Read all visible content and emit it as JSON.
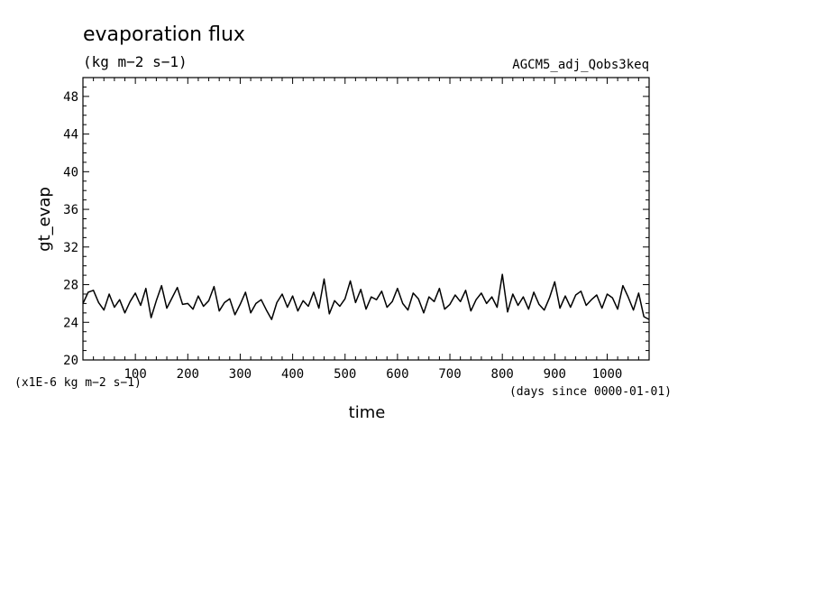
{
  "chart_data": {
    "type": "line",
    "title": "evaporation flux",
    "units": "(kg m−2 s−1)",
    "run_name": "AGCM5_adj_Qobs3keq",
    "xlabel": "time",
    "ylabel": "gt_evap",
    "x_units": "(days since 0000-01-01)",
    "y_scale_note": "(x1E-6 kg m−2 s−1)",
    "xlim": [
      0,
      1080
    ],
    "ylim": [
      20,
      50
    ],
    "x_ticks": [
      100,
      200,
      300,
      400,
      500,
      600,
      700,
      800,
      900,
      1000
    ],
    "x_tick_labels": [
      "100",
      "200",
      "300",
      "400",
      "500",
      "600",
      "700",
      "800",
      "900",
      "1000"
    ],
    "y_ticks": [
      20,
      24,
      28,
      32,
      36,
      40,
      44,
      48
    ],
    "y_tick_labels": [
      "20",
      "24",
      "28",
      "32",
      "36",
      "40",
      "44",
      "48"
    ],
    "grid": false,
    "series": [
      {
        "color": "#000000",
        "x": [
          0,
          10,
          20,
          30,
          40,
          50,
          60,
          70,
          80,
          90,
          100,
          110,
          120,
          130,
          140,
          150,
          160,
          170,
          180,
          190,
          200,
          210,
          220,
          230,
          240,
          250,
          260,
          270,
          280,
          290,
          300,
          310,
          320,
          330,
          340,
          350,
          360,
          370,
          380,
          390,
          400,
          410,
          420,
          430,
          440,
          450,
          460,
          470,
          480,
          490,
          500,
          510,
          520,
          530,
          540,
          550,
          560,
          570,
          580,
          590,
          600,
          610,
          620,
          630,
          640,
          650,
          660,
          670,
          680,
          690,
          700,
          710,
          720,
          730,
          740,
          750,
          760,
          770,
          780,
          790,
          800,
          810,
          820,
          830,
          840,
          850,
          860,
          870,
          880,
          890,
          900,
          910,
          920,
          930,
          940,
          950,
          960,
          970,
          980,
          990,
          1000,
          1010,
          1020,
          1030,
          1040,
          1050,
          1060,
          1070,
          1080
        ],
        "values": [
          26.0,
          27.2,
          27.4,
          26.1,
          25.3,
          27.0,
          25.6,
          26.4,
          25.0,
          26.2,
          27.1,
          25.8,
          27.6,
          24.5,
          26.3,
          27.9,
          25.5,
          26.6,
          27.7,
          25.9,
          26.0,
          25.4,
          26.8,
          25.7,
          26.3,
          27.8,
          25.2,
          26.1,
          26.5,
          24.8,
          25.9,
          27.2,
          25.0,
          26.0,
          26.4,
          25.3,
          24.3,
          26.1,
          27.0,
          25.6,
          26.8,
          25.2,
          26.3,
          25.7,
          27.2,
          25.5,
          28.6,
          24.9,
          26.3,
          25.7,
          26.5,
          28.4,
          26.1,
          27.5,
          25.4,
          26.7,
          26.4,
          27.3,
          25.6,
          26.2,
          27.6,
          26.0,
          25.3,
          27.1,
          26.5,
          25.0,
          26.7,
          26.2,
          27.6,
          25.4,
          25.9,
          26.9,
          26.2,
          27.4,
          25.2,
          26.4,
          27.1,
          26.0,
          26.7,
          25.6,
          29.1,
          25.1,
          27.0,
          25.8,
          26.7,
          25.4,
          27.2,
          25.9,
          25.3,
          26.6,
          28.3,
          25.5,
          26.8,
          25.6,
          26.9,
          27.3,
          25.8,
          26.4,
          26.9,
          25.5,
          27.0,
          26.6,
          25.4,
          27.9,
          26.7,
          25.3,
          27.1,
          24.6,
          24.3
        ]
      }
    ]
  }
}
